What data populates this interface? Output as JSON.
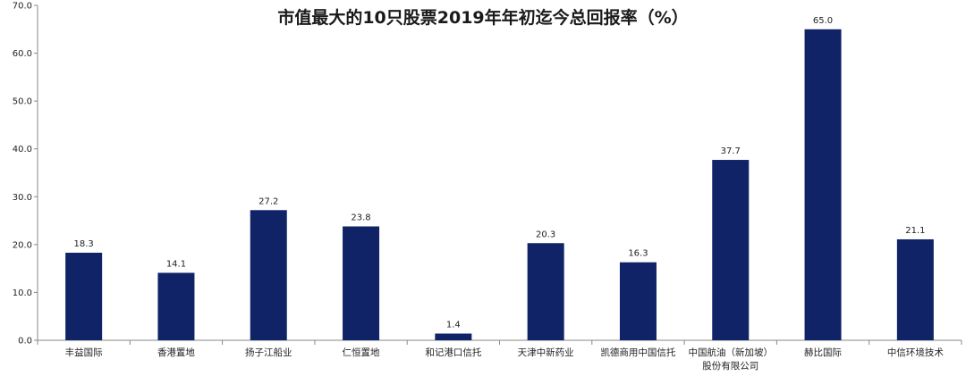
{
  "chart_data": {
    "type": "bar",
    "title": "市值最大的10只股票2019年年初迄今总回报率（%）",
    "xlabel": "",
    "ylabel": "",
    "ylim": [
      0,
      70
    ],
    "yticks": [
      "0.0",
      "10.0",
      "20.0",
      "30.0",
      "40.0",
      "50.0",
      "60.0",
      "70.0"
    ],
    "categories": [
      [
        "丰益国际"
      ],
      [
        "香港置地"
      ],
      [
        "扬子江船业"
      ],
      [
        "仁恒置地"
      ],
      [
        "和记港口信托"
      ],
      [
        "天津中新药业"
      ],
      [
        "凯德商用中国信托"
      ],
      [
        "中国航油（新加坡）",
        "股份有限公司"
      ],
      [
        "赫比国际"
      ],
      [
        "中信环境技术"
      ]
    ],
    "values": [
      18.3,
      14.1,
      27.2,
      23.8,
      1.4,
      20.3,
      16.3,
      37.7,
      65.0,
      21.1
    ],
    "value_labels": [
      "18.3",
      "14.1",
      "27.2",
      "23.8",
      "1.4",
      "20.3",
      "16.3",
      "37.7",
      "65.0",
      "21.1"
    ],
    "bar_color": "#0f2366",
    "grid": false,
    "legend": "none"
  }
}
